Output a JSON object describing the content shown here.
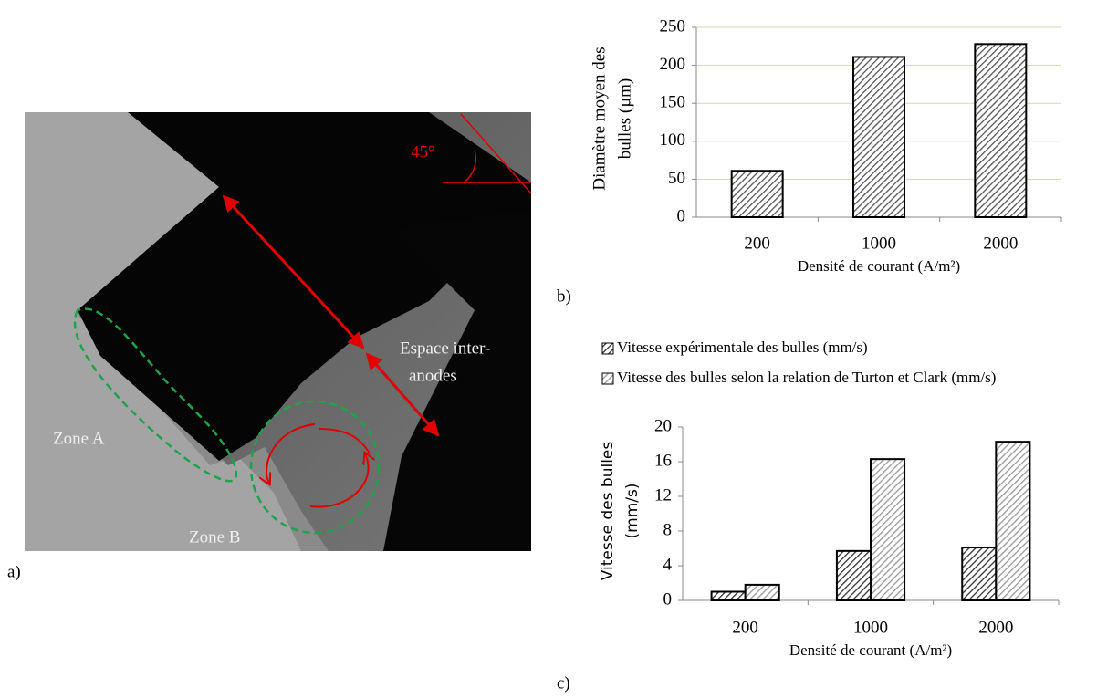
{
  "panels": {
    "a": "a)",
    "b": "b)",
    "c": "c)"
  },
  "photo": {
    "angle_label": "45°",
    "gap_label": [
      "Espace inter-",
      "anodes"
    ],
    "zone_a": "Zone A",
    "zone_b": "Zone B"
  },
  "chart_data": [
    {
      "type": "bar",
      "y_label": [
        "Diamètre moyen des",
        "bulles (µm)"
      ],
      "x_label": "Densité de courant (A/m²)",
      "categories": [
        "200",
        "1000",
        "2000"
      ],
      "values": [
        61,
        211,
        228
      ],
      "color": "#555555",
      "ylim": [
        0,
        250
      ],
      "yticks": [
        0,
        50,
        100,
        150,
        200,
        250
      ],
      "grid": true
    },
    {
      "type": "grouped_bar",
      "y_label": [
        "Vitesse des bulles",
        "(mm/s)"
      ],
      "x_label": "Densité de courant (A/m²)",
      "categories": [
        "200",
        "1000",
        "2000"
      ],
      "series": [
        {
          "name": "Vitesse expérimentale des bulles (mm/s)",
          "color": "#333333",
          "values": [
            1.0,
            5.7,
            6.1
          ]
        },
        {
          "name": "Vitesse des bulles selon la relation de Turton et Clark (mm/s)",
          "color": "#999999",
          "values": [
            1.8,
            16.3,
            18.3
          ]
        }
      ],
      "ylim": [
        0,
        20
      ],
      "yticks": [
        0,
        4,
        8,
        12,
        16,
        20
      ],
      "grid": false,
      "legend": "top"
    }
  ]
}
